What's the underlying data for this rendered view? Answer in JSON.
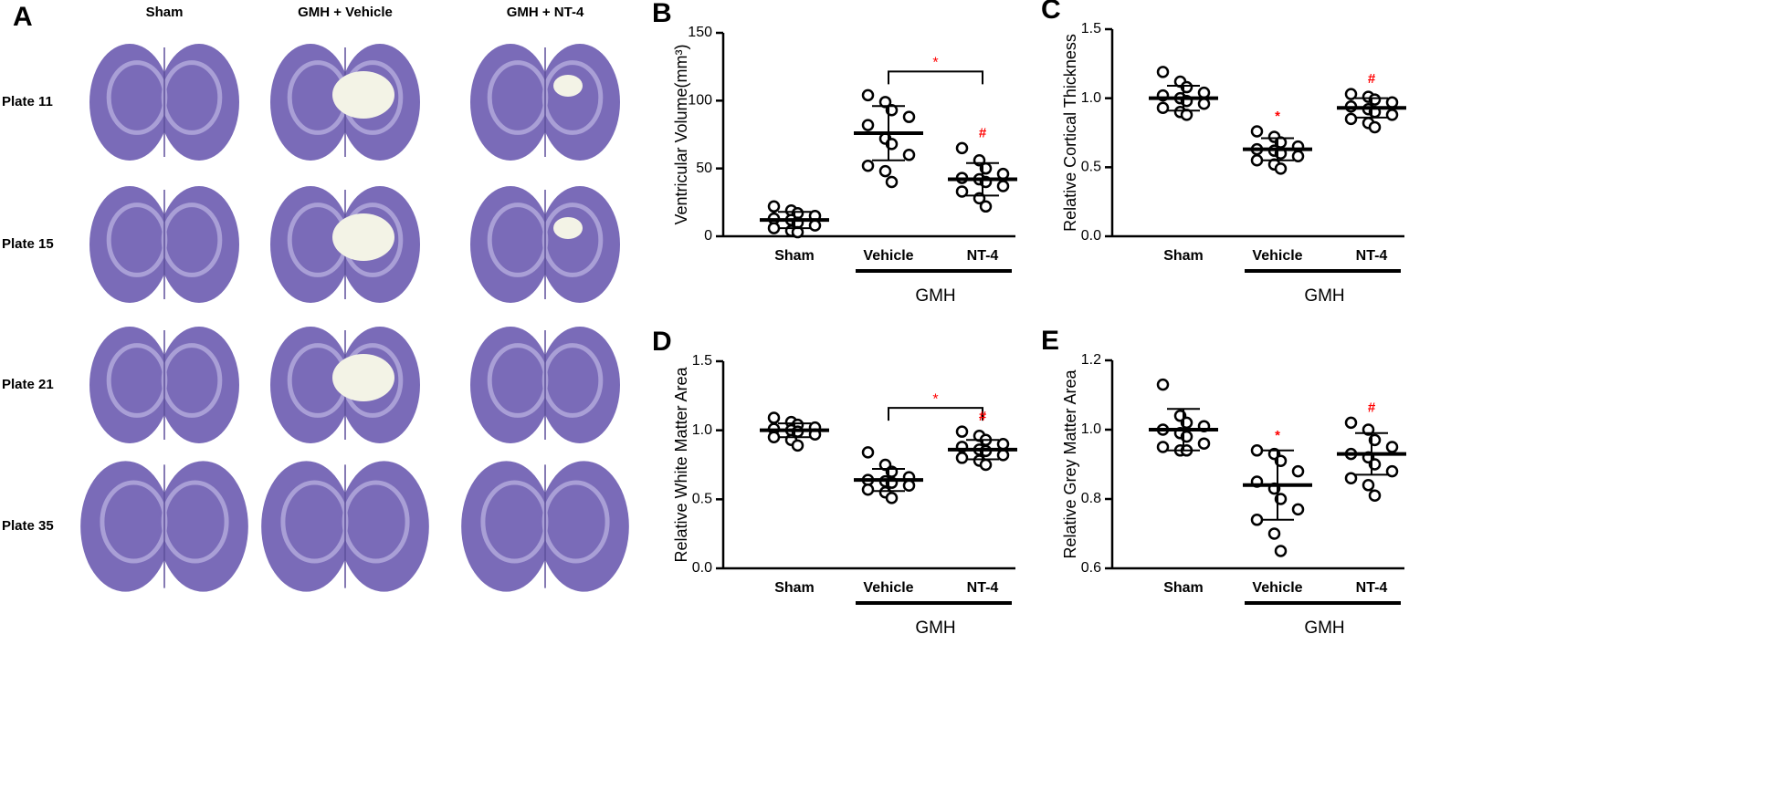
{
  "panel_a": {
    "label": "A",
    "columns": [
      "Sham",
      "GMH + Vehicle",
      "GMH + NT-4"
    ],
    "rows": [
      "Plate 11",
      "Plate 15",
      "Plate 21",
      "Plate 35"
    ]
  },
  "chart_data": [
    {
      "type": "scatter",
      "panel": "B",
      "ylabel": "Ventricular Volume(mm³)",
      "categories": [
        "Sham",
        "Vehicle",
        "NT-4"
      ],
      "group_label": "GMH",
      "ylim": [
        0,
        150
      ],
      "yticks": [
        0,
        50,
        100,
        150
      ],
      "points": [
        [
          22,
          19,
          17,
          15,
          13,
          12,
          10,
          8,
          6,
          4,
          3
        ],
        [
          104,
          99,
          93,
          88,
          82,
          72,
          68,
          60,
          52,
          48,
          40
        ],
        [
          65,
          56,
          50,
          46,
          43,
          42,
          40,
          37,
          33,
          28,
          22
        ]
      ],
      "means": [
        12,
        76,
        42
      ],
      "sds": [
        6,
        20,
        12
      ],
      "annotations": [
        {
          "categories": [
            "Vehicle",
            "NT-4"
          ],
          "text": "*",
          "color": "#ff0000"
        },
        {
          "category": "NT-4",
          "text": "#",
          "color": "#ff0000"
        }
      ]
    },
    {
      "type": "scatter",
      "panel": "C",
      "ylabel": "Relative Cortical Thickness",
      "categories": [
        "Sham",
        "Vehicle",
        "NT-4"
      ],
      "group_label": "GMH",
      "ylim": [
        0,
        1.5
      ],
      "yticks": [
        {
          "value": 0,
          "label": "0.0"
        },
        0.5,
        {
          "value": 1,
          "label": "1.0"
        },
        1.5
      ],
      "points": [
        [
          1.19,
          1.12,
          1.08,
          1.04,
          1.02,
          1.0,
          0.98,
          0.96,
          0.93,
          0.9,
          0.88
        ],
        [
          0.76,
          0.72,
          0.68,
          0.65,
          0.63,
          0.62,
          0.6,
          0.58,
          0.55,
          0.52,
          0.49
        ],
        [
          1.03,
          1.01,
          0.99,
          0.97,
          0.94,
          0.92,
          0.9,
          0.88,
          0.85,
          0.82,
          0.79
        ]
      ],
      "means": [
        1.0,
        0.63,
        0.93
      ],
      "sds": [
        0.09,
        0.08,
        0.07
      ],
      "annotations": [
        {
          "category": "Vehicle",
          "text": "*",
          "color": "#ff0000"
        },
        {
          "category": "NT-4",
          "text": "#",
          "color": "#ff0000"
        }
      ]
    },
    {
      "type": "scatter",
      "panel": "D",
      "ylabel": "Relative White Matter Area",
      "categories": [
        "Sham",
        "Vehicle",
        "NT-4"
      ],
      "group_label": "GMH",
      "ylim": [
        0,
        1.5
      ],
      "yticks": [
        {
          "value": 0,
          "label": "0.0"
        },
        0.5,
        {
          "value": 1,
          "label": "1.0"
        },
        1.5
      ],
      "points": [
        [
          1.09,
          1.06,
          1.04,
          1.02,
          1.01,
          1.0,
          0.99,
          0.97,
          0.95,
          0.93,
          0.89
        ],
        [
          0.84,
          0.75,
          0.7,
          0.66,
          0.64,
          0.63,
          0.62,
          0.6,
          0.57,
          0.55,
          0.51
        ],
        [
          0.99,
          0.96,
          0.93,
          0.9,
          0.88,
          0.86,
          0.85,
          0.82,
          0.8,
          0.78,
          0.75
        ]
      ],
      "means": [
        1.0,
        0.64,
        0.86
      ],
      "sds": [
        0.05,
        0.08,
        0.07
      ],
      "annotations": [
        {
          "categories": [
            "Vehicle",
            "NT-4"
          ],
          "text": "*",
          "color": "#ff0000"
        },
        {
          "category": "NT-4",
          "text": "#",
          "color": "#ff0000"
        }
      ]
    },
    {
      "type": "scatter",
      "panel": "E",
      "ylabel": "Relative Grey Matter Area",
      "categories": [
        "Sham",
        "Vehicle",
        "NT-4"
      ],
      "group_label": "GMH",
      "ylim": [
        0.6,
        1.2
      ],
      "yticks": [
        0.6,
        0.8,
        {
          "value": 1,
          "label": "1.0"
        },
        1.2
      ],
      "points": [
        [
          1.13,
          1.04,
          1.02,
          1.01,
          1.0,
          0.99,
          0.98,
          0.96,
          0.95,
          0.94,
          0.94
        ],
        [
          0.94,
          0.93,
          0.91,
          0.88,
          0.85,
          0.83,
          0.8,
          0.77,
          0.74,
          0.7,
          0.65
        ],
        [
          1.02,
          1.0,
          0.97,
          0.95,
          0.93,
          0.92,
          0.9,
          0.88,
          0.86,
          0.84,
          0.81
        ]
      ],
      "means": [
        1.0,
        0.84,
        0.93
      ],
      "sds": [
        0.06,
        0.1,
        0.06
      ],
      "annotations": [
        {
          "category": "Vehicle",
          "text": "*",
          "color": "#ff0000"
        },
        {
          "category": "NT-4",
          "text": "#",
          "color": "#ff0000"
        }
      ]
    }
  ]
}
